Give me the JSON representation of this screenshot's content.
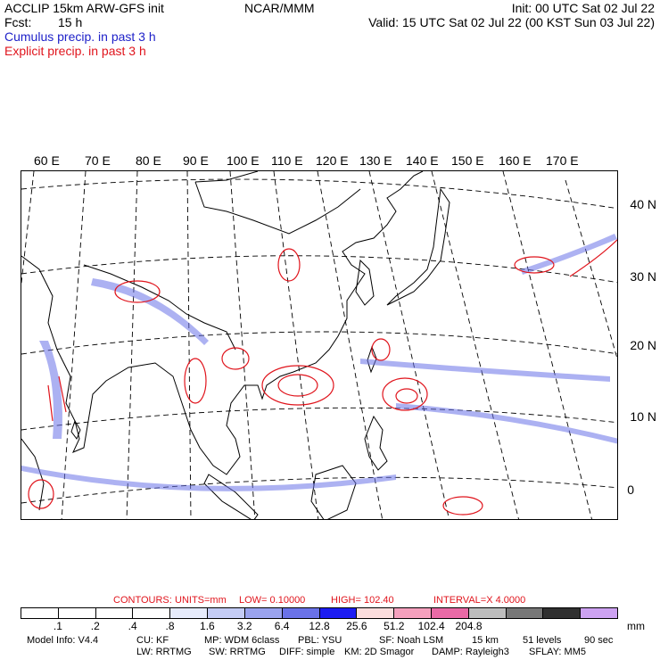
{
  "header": {
    "title_left": "ACCLIP 15km ARW-GFS init",
    "title_center": "NCAR/MMM",
    "init": "Init: 00 UTC Sat 02 Jul 22",
    "fcst_label": "Fcst:",
    "fcst_value": "15 h",
    "valid": "Valid: 15 UTC Sat 02 Jul 22 (00 KST Sun 03 Jul 22)",
    "legend_cumulus": "Cumulus precip. in past 3 h",
    "legend_explicit": "Explicit precip. in past 3 h"
  },
  "map": {
    "lon_labels": [
      "60 E",
      "70 E",
      "80 E",
      "90 E",
      "100 E",
      "110 E",
      "120 E",
      "130 E",
      "140 E",
      "150 E",
      "160 E",
      "170 E"
    ],
    "lat_labels": [
      "40 N",
      "30 N",
      "20 N",
      "10 N",
      "0"
    ],
    "colors": {
      "cumulus": "#1f22c9",
      "explicit": "#e0141c",
      "coast": "#000000",
      "grid": "#000000"
    }
  },
  "contours": {
    "label": "CONTOURS:",
    "units": "UNITS=mm",
    "low": "LOW= 0.10000",
    "high": "HIGH= 102.40",
    "interval": "INTERVAL=X 4.0000"
  },
  "colorbar": {
    "colors": [
      "#ffffff",
      "#ffffff",
      "#ffffff",
      "#ffffff",
      "#e6ebfb",
      "#c4ccf5",
      "#9aa3ee",
      "#6a72e8",
      "#1c1cf2",
      "#fbdddd",
      "#f5a0bd",
      "#ea6aa6",
      "#bdbdbd",
      "#777777",
      "#303030",
      "#cda2f2"
    ],
    "ticks": [
      ".1",
      ".2",
      ".4",
      ".8",
      "1.6",
      "3.2",
      "6.4",
      "12.8",
      "25.6",
      "51.2",
      "102.4",
      "204.8"
    ],
    "unit": "mm"
  },
  "footer": {
    "row1": [
      "Model Info: V4.4",
      "CU: KF",
      "MP: WDM 6class",
      "PBL: YSU",
      "SF: Noah LSM",
      "15 km",
      "51 levels",
      "90 sec"
    ],
    "row2": [
      "LW: RRTMG",
      "SW: RRTMG",
      "DIFF: simple",
      "KM: 2D Smagor",
      "DAMP: Rayleigh3",
      "SFLAY: MM5"
    ]
  }
}
